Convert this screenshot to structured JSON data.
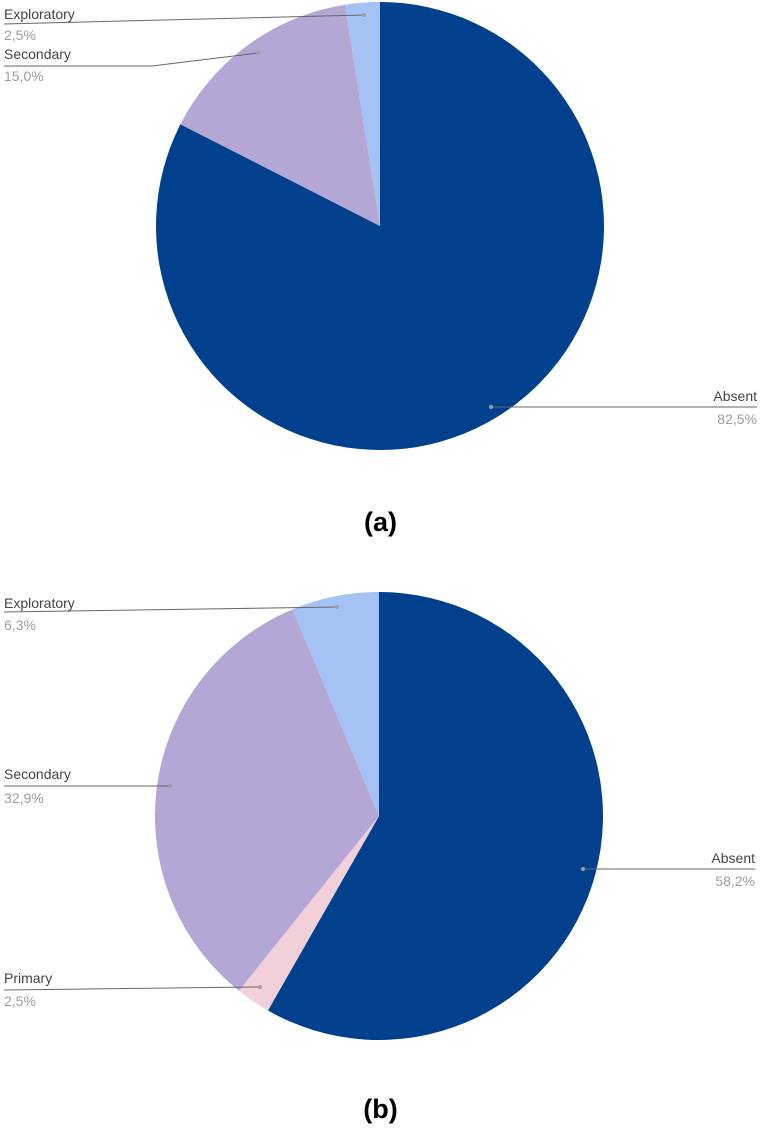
{
  "chart_data": [
    {
      "type": "pie",
      "panel_label": "(a)",
      "categories": [
        "Absent",
        "Secondary",
        "Exploratory"
      ],
      "values": [
        82.5,
        15.0,
        2.5
      ],
      "value_labels": [
        "82,5%",
        "15,0%",
        "2,5%"
      ],
      "colors": [
        "#00408c",
        "#b4a7d6",
        "#a4c2f4"
      ],
      "start_angle_deg": 0,
      "direction": "clockwise"
    },
    {
      "type": "pie",
      "panel_label": "(b)",
      "categories": [
        "Absent",
        "Primary",
        "Secondary",
        "Exploratory"
      ],
      "values": [
        58.2,
        2.5,
        32.9,
        6.3
      ],
      "value_labels": [
        "58,2%",
        "2,5%",
        "32,9%",
        "6,3%"
      ],
      "colors": [
        "#00408c",
        "#f2d0d9",
        "#b4a7d6",
        "#a4c2f4"
      ],
      "start_angle_deg": 0,
      "direction": "clockwise"
    }
  ],
  "colors": {
    "leader_line": "#666666",
    "slice_name": "#444444",
    "slice_value": "#9e9e9e",
    "panel_label": "#000000"
  }
}
